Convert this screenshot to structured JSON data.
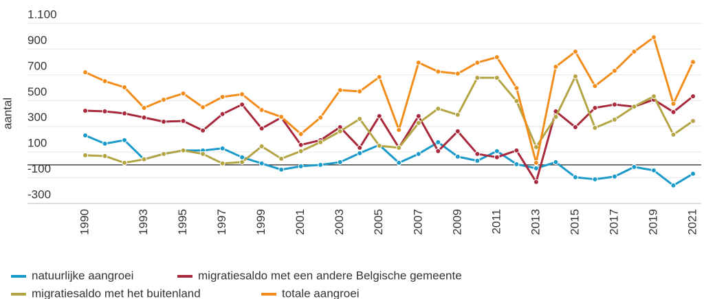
{
  "chart_data": {
    "type": "line",
    "y_label": "aantal",
    "categories": [
      "1990",
      null,
      null,
      "1993",
      null,
      "1995",
      null,
      "1997",
      null,
      "1999",
      null,
      "2001",
      null,
      "2003",
      null,
      "2005",
      null,
      "2007",
      null,
      "2009",
      null,
      "2011",
      null,
      "2013",
      null,
      "2015",
      null,
      "2017",
      null,
      "2019",
      null,
      "2021"
    ],
    "ylim": [
      -300,
      1100
    ],
    "yticks": [
      -300,
      -100,
      100,
      300,
      500,
      700,
      900,
      {
        "value": 1100,
        "label": "1.100"
      }
    ],
    "grid": true,
    "legend": "bottom",
    "series": [
      {
        "name": "natuurlijke aangroei",
        "color": "#1a9ac9",
        "values": [
          229,
          165,
          192,
          43,
          85,
          112,
          112,
          128,
          59,
          11,
          -37,
          -11,
          0,
          21,
          91,
          155,
          16,
          85,
          176,
          64,
          32,
          107,
          5,
          -27,
          21,
          -96,
          -112,
          -91,
          -16,
          -43,
          -160,
          -69
        ]
      },
      {
        "name": "migratiesaldo met een andere Belgische gemeente",
        "color": "#a8283c",
        "values": [
          421,
          416,
          400,
          368,
          336,
          341,
          267,
          395,
          469,
          283,
          368,
          155,
          192,
          293,
          133,
          379,
          133,
          379,
          107,
          261,
          85,
          59,
          112,
          -133,
          416,
          293,
          443,
          469,
          453,
          507,
          411,
          533
        ]
      },
      {
        "name": "migratiesaldo met het buitenland",
        "color": "#b3a444",
        "values": [
          75,
          69,
          16,
          43,
          85,
          112,
          85,
          11,
          21,
          144,
          48,
          107,
          176,
          261,
          357,
          149,
          133,
          325,
          437,
          389,
          677,
          677,
          496,
          139,
          373,
          688,
          288,
          352,
          453,
          533,
          235,
          341
        ]
      },
      {
        "name": "totale aangroei",
        "color": "#f28c1a",
        "values": [
          720,
          651,
          603,
          443,
          507,
          555,
          448,
          528,
          549,
          427,
          373,
          240,
          368,
          581,
          571,
          683,
          272,
          795,
          725,
          709,
          795,
          837,
          597,
          16,
          763,
          880,
          613,
          731,
          880,
          992,
          475,
          800
        ]
      }
    ]
  }
}
